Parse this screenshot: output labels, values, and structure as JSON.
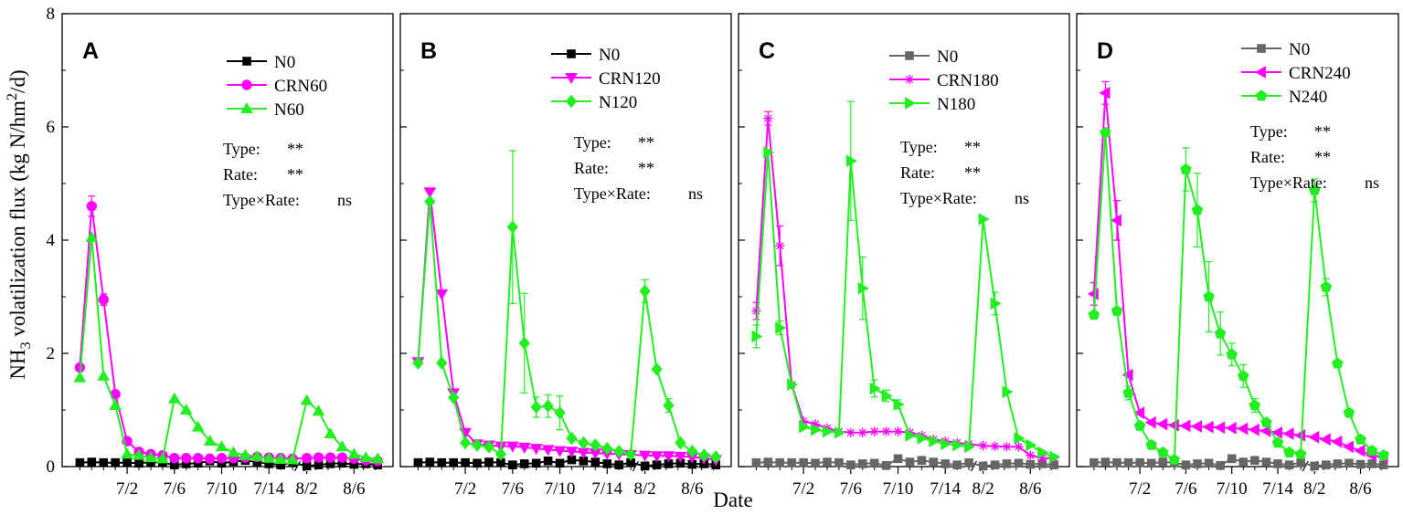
{
  "chart_data": {
    "type": "line",
    "ylabel_parts": {
      "pre": "NH",
      "sub": "3",
      "mid": " volatilization flux (kg N/hm",
      "sup": "2",
      "post": "/d)"
    },
    "ylabel": "NH3 volatilization flux (kg N/hm2/d)",
    "xlabel": "Date",
    "ylim": [
      0,
      8
    ],
    "yticks": [
      "0",
      "2",
      "4",
      "6",
      "8"
    ],
    "xticks": [
      {
        "label": "7/2",
        "x": 5
      },
      {
        "label": "7/6",
        "x": 9
      },
      {
        "label": "7/10",
        "x": 13
      },
      {
        "label": "7/14",
        "x": 17
      },
      {
        "label": "8/2",
        "x": 20.2
      },
      {
        "label": "8/6",
        "x": 24.2
      }
    ],
    "xlim": [
      -0.5,
      27.5
    ],
    "axis_break_x": 19.8,
    "panels": [
      {
        "label": "A",
        "stats": [
          {
            "name": "Type:",
            "value": "**"
          },
          {
            "name": "Rate:",
            "value": "**"
          },
          {
            "name": "Type×Rate:",
            "value": "ns"
          }
        ],
        "series": [
          {
            "name": "N0",
            "color": "#000000",
            "marker": "square",
            "x": [
              1,
              2,
              3,
              4,
              5,
              6,
              7,
              8,
              9,
              10,
              11,
              12,
              13,
              14,
              15,
              16,
              17,
              18,
              19,
              20.2,
              21.2,
              22.2,
              23.2,
              24.2,
              25.2,
              26.2
            ],
            "y": [
              0.07,
              0.08,
              0.07,
              0.07,
              0.07,
              0.06,
              0.08,
              0.07,
              0.03,
              0.05,
              0.06,
              0.1,
              0.06,
              0.09,
              0.11,
              0.08,
              0.05,
              0.03,
              0.07,
              0.01,
              0.03,
              0.05,
              0.06,
              0.04,
              0.05,
              0.03
            ],
            "err": []
          },
          {
            "name": "CRN60",
            "color": "#ff00ff",
            "marker": "circle",
            "x": [
              1,
              2,
              3,
              4,
              5,
              6,
              7,
              8,
              9,
              10,
              11,
              12,
              13,
              14,
              15,
              16,
              17,
              18,
              19,
              20.2,
              21.2,
              22.2,
              23.2,
              24.2,
              25.2,
              26.2
            ],
            "y": [
              1.75,
              4.6,
              2.95,
              1.28,
              0.45,
              0.26,
              0.22,
              0.2,
              0.15,
              0.15,
              0.15,
              0.14,
              0.15,
              0.15,
              0.16,
              0.17,
              0.16,
              0.15,
              0.14,
              0.15,
              0.16,
              0.16,
              0.16,
              0.14,
              0.11,
              0.1
            ],
            "err": [
              0,
              0.18,
              0.1,
              0,
              0,
              0,
              0,
              0,
              0,
              0,
              0,
              0,
              0,
              0,
              0,
              0,
              0,
              0,
              0,
              0,
              0,
              0,
              0,
              0,
              0,
              0
            ]
          },
          {
            "name": "N60",
            "color": "#22ee22",
            "marker": "triangle-up",
            "x": [
              1,
              2,
              3,
              4,
              5,
              6,
              7,
              8,
              9,
              10,
              11,
              12,
              13,
              14,
              15,
              16,
              17,
              18,
              19,
              20.2,
              21.2,
              22.2,
              23.2,
              24.2,
              25.2,
              26.2
            ],
            "y": [
              1.57,
              4.05,
              1.6,
              1.08,
              0.22,
              0.2,
              0.16,
              0.14,
              1.2,
              1.0,
              0.7,
              0.45,
              0.35,
              0.25,
              0.2,
              0.18,
              0.15,
              0.13,
              0.12,
              1.17,
              0.98,
              0.58,
              0.35,
              0.22,
              0.16,
              0.14
            ],
            "err": []
          }
        ]
      },
      {
        "label": "B",
        "stats": [
          {
            "name": "Type:",
            "value": "**"
          },
          {
            "name": "Rate:",
            "value": "**"
          },
          {
            "name": "Type×Rate:",
            "value": "ns"
          }
        ],
        "series": [
          {
            "name": "N0",
            "color": "#000000",
            "marker": "square",
            "x": [
              1,
              2,
              3,
              4,
              5,
              6,
              7,
              8,
              9,
              10,
              11,
              12,
              13,
              14,
              15,
              16,
              17,
              18,
              19,
              20.2,
              21.2,
              22.2,
              23.2,
              24.2,
              25.2,
              26.2
            ],
            "y": [
              0.07,
              0.08,
              0.07,
              0.07,
              0.07,
              0.06,
              0.08,
              0.07,
              0.03,
              0.05,
              0.06,
              0.1,
              0.06,
              0.12,
              0.1,
              0.08,
              0.05,
              0.03,
              0.07,
              0.01,
              0.03,
              0.05,
              0.06,
              0.04,
              0.05,
              0.03
            ],
            "err": []
          },
          {
            "name": "CRN120",
            "color": "#ff00ff",
            "marker": "triangle-down",
            "x": [
              1,
              2,
              3,
              4,
              5,
              6,
              7,
              8,
              9,
              10,
              11,
              12,
              13,
              14,
              15,
              16,
              17,
              18,
              19,
              20.2,
              21.2,
              22.2,
              23.2,
              24.2,
              25.2,
              26.2
            ],
            "y": [
              1.85,
              4.85,
              3.05,
              1.3,
              0.6,
              0.4,
              0.38,
              0.36,
              0.36,
              0.34,
              0.32,
              0.3,
              0.28,
              0.27,
              0.25,
              0.24,
              0.23,
              0.22,
              0.21,
              0.2,
              0.19,
              0.19,
              0.18,
              0.17,
              0.15,
              0.12
            ],
            "err": []
          },
          {
            "name": "N120",
            "color": "#22ee22",
            "marker": "diamond",
            "x": [
              1,
              2,
              3,
              4,
              5,
              6,
              7,
              8,
              9,
              10,
              11,
              12,
              13,
              14,
              15,
              16,
              17,
              18,
              19,
              20.2,
              21.2,
              22.2,
              23.2,
              24.2,
              25.2,
              26.2
            ],
            "y": [
              1.83,
              4.68,
              1.83,
              1.22,
              0.42,
              0.38,
              0.35,
              0.22,
              4.23,
              2.18,
              1.05,
              1.07,
              0.95,
              0.5,
              0.42,
              0.38,
              0.32,
              0.27,
              0.22,
              3.1,
              1.72,
              1.08,
              0.42,
              0.27,
              0.2,
              0.17
            ],
            "err": [
              0,
              0,
              0,
              0,
              0,
              0,
              0,
              0,
              1.35,
              0.88,
              0.18,
              0.2,
              0.3,
              0,
              0,
              0,
              0,
              0,
              0,
              0.2,
              0,
              0.12,
              0,
              0,
              0,
              0
            ]
          }
        ]
      },
      {
        "label": "C",
        "stats": [
          {
            "name": "Type:",
            "value": "**"
          },
          {
            "name": "Rate:",
            "value": "**"
          },
          {
            "name": "Type×Rate:",
            "value": "ns"
          }
        ],
        "series": [
          {
            "name": "N0",
            "color": "#666666",
            "marker": "square",
            "x": [
              1,
              2,
              3,
              4,
              5,
              6,
              7,
              8,
              9,
              10,
              11,
              12,
              13,
              14,
              15,
              16,
              17,
              18,
              19,
              20.2,
              21.2,
              22.2,
              23.2,
              24.2,
              25.2,
              26.2
            ],
            "y": [
              0.07,
              0.08,
              0.07,
              0.07,
              0.07,
              0.06,
              0.08,
              0.07,
              0.03,
              0.05,
              0.06,
              0.02,
              0.14,
              0.08,
              0.11,
              0.08,
              0.05,
              0.03,
              0.07,
              0.01,
              0.03,
              0.05,
              0.06,
              0.04,
              0.05,
              0.03
            ],
            "err": []
          },
          {
            "name": "CRN180",
            "color": "#ff00ff",
            "marker": "asterisk",
            "x": [
              1,
              2,
              3,
              4,
              5,
              6,
              7,
              8,
              9,
              10,
              11,
              12,
              13,
              14,
              15,
              16,
              17,
              18,
              19,
              20.2,
              21.2,
              22.2,
              23.2,
              24.2,
              25.2,
              26.2
            ],
            "y": [
              2.75,
              6.15,
              3.9,
              1.45,
              0.8,
              0.75,
              0.68,
              0.62,
              0.6,
              0.6,
              0.62,
              0.62,
              0.62,
              0.6,
              0.55,
              0.48,
              0.45,
              0.42,
              0.4,
              0.37,
              0.36,
              0.35,
              0.35,
              0.2,
              0.15,
              0.15
            ],
            "err": [
              0.15,
              0.12,
              0.35,
              0,
              0,
              0,
              0,
              0,
              0,
              0,
              0,
              0,
              0,
              0,
              0,
              0,
              0,
              0,
              0,
              0,
              0,
              0,
              0,
              0,
              0,
              0
            ]
          },
          {
            "name": "N180",
            "color": "#22ee22",
            "marker": "triangle-right",
            "x": [
              1,
              2,
              3,
              4,
              5,
              6,
              7,
              8,
              9,
              10,
              11,
              12,
              13,
              14,
              15,
              16,
              17,
              18,
              19,
              20.2,
              21.2,
              22.2,
              23.2,
              24.2,
              25.2,
              26.2
            ],
            "y": [
              2.3,
              5.55,
              2.45,
              1.45,
              0.7,
              0.65,
              0.62,
              0.6,
              5.4,
              3.15,
              1.38,
              1.25,
              1.1,
              0.55,
              0.5,
              0.45,
              0.4,
              0.38,
              0.35,
              4.37,
              2.88,
              1.32,
              0.5,
              0.38,
              0.25,
              0.17
            ],
            "err": [
              0.2,
              0,
              0.12,
              0,
              0,
              0,
              0,
              0,
              1.05,
              0.55,
              0.15,
              0.1,
              0.08,
              0,
              0,
              0,
              0,
              0,
              0,
              0,
              0.2,
              0,
              0,
              0,
              0,
              0
            ]
          }
        ]
      },
      {
        "label": "D",
        "stats": [
          {
            "name": "Type:",
            "value": "**"
          },
          {
            "name": "Rate:",
            "value": "**"
          },
          {
            "name": "Type×Rate:",
            "value": "ns"
          }
        ],
        "series": [
          {
            "name": "N0",
            "color": "#666666",
            "marker": "square",
            "x": [
              1,
              2,
              3,
              4,
              5,
              6,
              7,
              8,
              9,
              10,
              11,
              12,
              13,
              14,
              15,
              16,
              17,
              18,
              19,
              20.2,
              21.2,
              22.2,
              23.2,
              24.2,
              25.2,
              26.2
            ],
            "y": [
              0.07,
              0.08,
              0.07,
              0.07,
              0.07,
              0.06,
              0.08,
              0.07,
              0.03,
              0.05,
              0.06,
              0.02,
              0.14,
              0.08,
              0.11,
              0.08,
              0.05,
              0.03,
              0.07,
              0.01,
              0.03,
              0.05,
              0.06,
              0.04,
              0.05,
              0.03
            ],
            "err": []
          },
          {
            "name": "CRN240",
            "color": "#ff00ff",
            "marker": "triangle-left",
            "x": [
              1,
              2,
              3,
              4,
              5,
              6,
              7,
              8,
              9,
              10,
              11,
              12,
              13,
              14,
              15,
              16,
              17,
              18,
              19,
              20.2,
              21.2,
              22.2,
              23.2,
              24.2,
              25.2,
              26.2
            ],
            "y": [
              3.05,
              6.6,
              4.35,
              1.62,
              0.95,
              0.78,
              0.75,
              0.73,
              0.72,
              0.71,
              0.7,
              0.69,
              0.68,
              0.67,
              0.65,
              0.63,
              0.6,
              0.58,
              0.55,
              0.52,
              0.48,
              0.44,
              0.35,
              0.28,
              0.2,
              0.17
            ],
            "err": [
              0.2,
              0.2,
              0.35,
              0,
              0,
              0,
              0,
              0,
              0,
              0,
              0,
              0,
              0,
              0,
              0,
              0,
              0,
              0,
              0,
              0,
              0,
              0,
              0,
              0,
              0,
              0
            ]
          },
          {
            "name": "N240",
            "color": "#22ee22",
            "marker": "pentagon",
            "x": [
              1,
              2,
              3,
              4,
              5,
              6,
              7,
              8,
              9,
              10,
              11,
              12,
              13,
              14,
              15,
              16,
              17,
              18,
              19,
              20.2,
              21.2,
              22.2,
              23.2,
              24.2,
              25.2,
              26.2
            ],
            "y": [
              2.68,
              5.9,
              2.75,
              1.3,
              0.72,
              0.38,
              0.25,
              0.12,
              5.25,
              4.53,
              3.0,
              2.35,
              1.98,
              1.6,
              1.08,
              0.78,
              0.42,
              0.25,
              0.22,
              4.88,
              3.17,
              1.82,
              0.95,
              0.48,
              0.28,
              0.2
            ],
            "err": [
              0,
              0,
              0,
              0.12,
              0,
              0,
              0,
              0,
              0.38,
              0.65,
              0.62,
              0.38,
              0.2,
              0.2,
              0.12,
              0,
              0,
              0,
              0,
              0.2,
              0.15,
              0,
              0,
              0,
              0,
              0
            ]
          }
        ]
      }
    ]
  }
}
